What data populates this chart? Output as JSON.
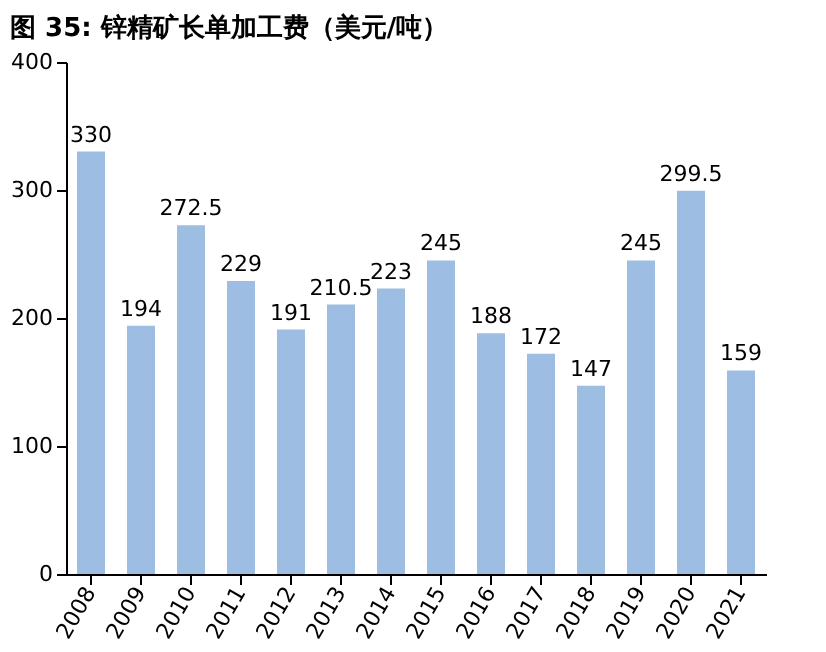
{
  "chart_data": {
    "type": "bar",
    "title": "图 35:  锌精矿长单加工费（美元/吨）",
    "categories": [
      "2008",
      "2009",
      "2010",
      "2011",
      "2012",
      "2013",
      "2014",
      "2015",
      "2016",
      "2017",
      "2018",
      "2019",
      "2020",
      "2021"
    ],
    "values": [
      330,
      194,
      272.5,
      229,
      191,
      210.5,
      223,
      245,
      188,
      172,
      147,
      245,
      299.5,
      159
    ],
    "color": "#9dbde3",
    "ylim": [
      0,
      400
    ],
    "yticks": [
      0,
      100,
      200,
      300,
      400
    ],
    "grid": false,
    "data_labels": true
  }
}
